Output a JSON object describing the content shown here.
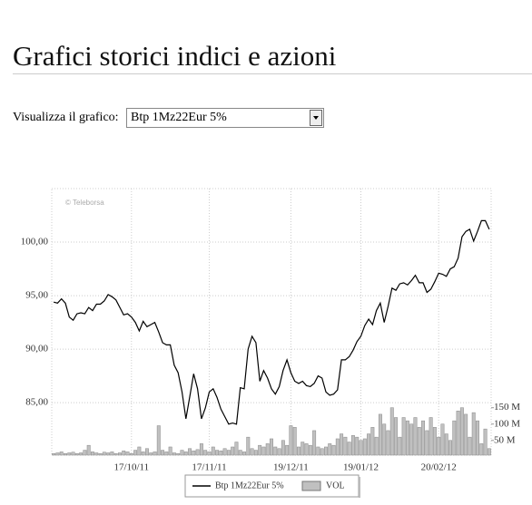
{
  "header": {
    "title": "Grafici storici indici e azioni"
  },
  "form": {
    "label": "Visualizza il grafico:",
    "selected": "Btp 1Mz22Eur 5%"
  },
  "chart_data": {
    "type": "line",
    "watermark": "© Teleborsa",
    "categories": [
      null,
      null,
      null,
      null,
      null,
      null,
      null,
      null,
      null,
      null,
      null,
      null,
      null,
      null,
      null,
      null,
      null,
      null,
      null,
      null,
      "17/10/11",
      null,
      null,
      null,
      null,
      null,
      null,
      null,
      null,
      null,
      null,
      null,
      null,
      null,
      null,
      null,
      null,
      null,
      null,
      null,
      "17/11/11",
      null,
      null,
      null,
      null,
      null,
      null,
      null,
      null,
      null,
      null,
      null,
      null,
      null,
      null,
      null,
      null,
      null,
      null,
      null,
      null,
      "19/12/11",
      null,
      null,
      null,
      null,
      null,
      null,
      null,
      null,
      null,
      null,
      null,
      null,
      null,
      null,
      null,
      null,
      null,
      "19/01/12",
      null,
      null,
      null,
      null,
      null,
      null,
      null,
      null,
      null,
      null,
      null,
      null,
      null,
      null,
      null,
      null,
      null,
      null,
      null,
      "20/02/12",
      null,
      null,
      null,
      null,
      null,
      null,
      null,
      null,
      null,
      null,
      null,
      null,
      null
    ],
    "series": [
      {
        "name": "Btp 1Mz22Eur 5%",
        "color": "#000000",
        "values": [
          94.4,
          94.3,
          94.7,
          94.3,
          93.0,
          92.7,
          93.3,
          93.4,
          93.3,
          93.9,
          93.6,
          94.2,
          94.2,
          94.5,
          95.1,
          94.9,
          94.6,
          93.9,
          93.2,
          93.3,
          93.0,
          92.5,
          91.7,
          92.6,
          92.1,
          92.3,
          92.5,
          91.6,
          90.6,
          90.4,
          90.4,
          88.5,
          87.8,
          86.0,
          83.5,
          85.6,
          87.7,
          86.3,
          83.5,
          84.5,
          86.0,
          86.3,
          85.5,
          84.4,
          83.7,
          83.0,
          83.1,
          83.0,
          86.4,
          86.3,
          90.0,
          91.2,
          90.6,
          87.0,
          88.0,
          87.3,
          86.3,
          85.8,
          86.5,
          88.0,
          89.0,
          87.8,
          87.0,
          86.8,
          87.0,
          86.6,
          86.5,
          86.8,
          87.5,
          87.3,
          86.0,
          85.7,
          85.8,
          86.2,
          89.0,
          89.0,
          89.3,
          89.9,
          90.7,
          91.2,
          92.2,
          92.8,
          92.3,
          93.6,
          94.3,
          92.5,
          94.0,
          95.7,
          95.5,
          96.1,
          96.2,
          96.0,
          96.4,
          96.9,
          96.2,
          96.2,
          95.3,
          95.6,
          96.3,
          97.1,
          97.0,
          96.8,
          97.5,
          97.7,
          98.5,
          100.5,
          101.0,
          101.2,
          100.1,
          101.0,
          102.0,
          102.0,
          101.2
        ]
      },
      {
        "name": "VOL",
        "type": "bar",
        "axis": "y2",
        "color": "#c0c0c0",
        "values": [
          10,
          12,
          15,
          10,
          12,
          14,
          10,
          12,
          20,
          35,
          15,
          12,
          10,
          14,
          12,
          15,
          10,
          12,
          18,
          15,
          10,
          20,
          30,
          15,
          25,
          12,
          15,
          95,
          20,
          15,
          30,
          12,
          10,
          20,
          15,
          25,
          18,
          22,
          40,
          20,
          15,
          30,
          20,
          18,
          25,
          20,
          30,
          45,
          20,
          15,
          60,
          25,
          20,
          35,
          30,
          40,
          55,
          30,
          25,
          50,
          35,
          95,
          90,
          30,
          45,
          40,
          35,
          80,
          30,
          25,
          30,
          40,
          35,
          55,
          70,
          60,
          45,
          65,
          60,
          50,
          55,
          70,
          90,
          60,
          130,
          100,
          80,
          150,
          120,
          60,
          120,
          110,
          100,
          120,
          90,
          110,
          80,
          120,
          90,
          60,
          100,
          70,
          50,
          110,
          140,
          150,
          130,
          60,
          135,
          110,
          40,
          85,
          25
        ]
      }
    ],
    "ylim": [
      80.1,
      105
    ],
    "yticks": [
      {
        "value": 85,
        "label": "85,00"
      },
      {
        "value": 90,
        "label": "90,00"
      },
      {
        "value": 95,
        "label": "95,00"
      },
      {
        "value": 100,
        "label": "100,00"
      }
    ],
    "y2lim": [
      5,
      820
    ],
    "y2ticks": [
      {
        "value": 50,
        "label": "50 M"
      },
      {
        "value": 100,
        "label": "100 M"
      },
      {
        "value": 150,
        "label": "150 M"
      }
    ],
    "grid": true
  }
}
